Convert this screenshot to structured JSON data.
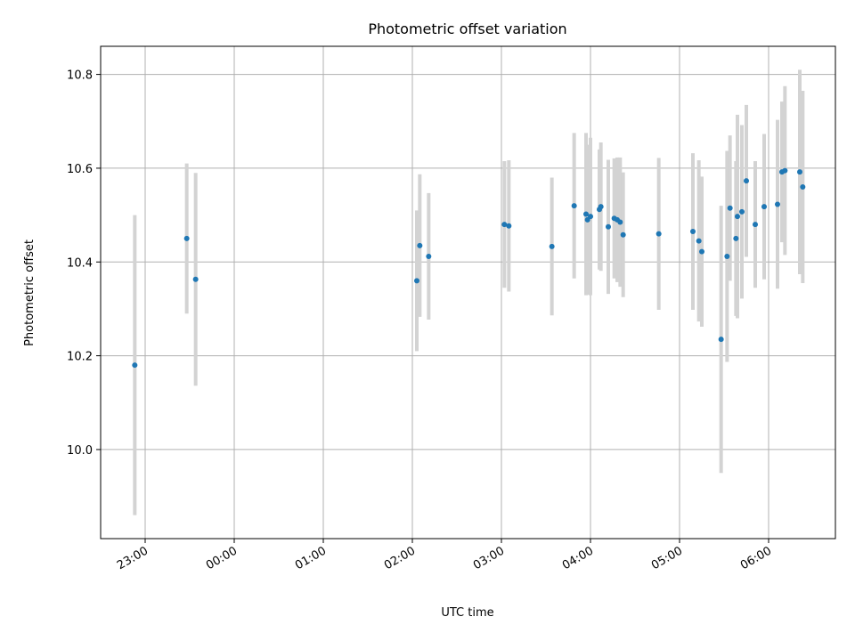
{
  "chart_data": {
    "type": "scatter",
    "title": "Photometric offset variation",
    "xlabel": "UTC time",
    "ylabel": "Photometric offset",
    "x_axis": {
      "unit": "time",
      "range": [
        "22:30",
        "06:45"
      ],
      "ticks": [
        "23:00",
        "00:00",
        "01:00",
        "02:00",
        "03:00",
        "04:00",
        "05:00",
        "06:00"
      ]
    },
    "y_axis": {
      "range": [
        9.81,
        10.86
      ],
      "ticks": [
        "10.0",
        "10.2",
        "10.4",
        "10.6",
        "10.8"
      ]
    },
    "grid": true,
    "colors": {
      "point": "#1f77b4",
      "errorbar": "#d3d3d3",
      "grid": "#b0b0b0"
    },
    "points": [
      {
        "x": "22:53",
        "y": 10.18,
        "err": 0.32
      },
      {
        "x": "23:28",
        "y": 10.45,
        "err": 0.16
      },
      {
        "x": "23:34",
        "y": 10.363,
        "err": 0.227
      },
      {
        "x": "02:03",
        "y": 10.36,
        "err": 0.15
      },
      {
        "x": "02:05",
        "y": 10.435,
        "err": 0.152
      },
      {
        "x": "02:11",
        "y": 10.412,
        "err": 0.135
      },
      {
        "x": "03:02",
        "y": 10.48,
        "err": 0.135
      },
      {
        "x": "03:05",
        "y": 10.477,
        "err": 0.14
      },
      {
        "x": "03:34",
        "y": 10.433,
        "err": 0.147
      },
      {
        "x": "03:49",
        "y": 10.52,
        "err": 0.155
      },
      {
        "x": "03:57",
        "y": 10.502,
        "err": 0.173
      },
      {
        "x": "03:58",
        "y": 10.49,
        "err": 0.16
      },
      {
        "x": "04:00",
        "y": 10.497,
        "err": 0.168
      },
      {
        "x": "04:06",
        "y": 10.512,
        "err": 0.128
      },
      {
        "x": "04:07",
        "y": 10.518,
        "err": 0.137
      },
      {
        "x": "04:12",
        "y": 10.475,
        "err": 0.143
      },
      {
        "x": "04:16",
        "y": 10.493,
        "err": 0.128
      },
      {
        "x": "04:18",
        "y": 10.49,
        "err": 0.133
      },
      {
        "x": "04:20",
        "y": 10.485,
        "err": 0.138
      },
      {
        "x": "04:22",
        "y": 10.458,
        "err": 0.133
      },
      {
        "x": "04:46",
        "y": 10.46,
        "err": 0.162
      },
      {
        "x": "05:09",
        "y": 10.465,
        "err": 0.167
      },
      {
        "x": "05:13",
        "y": 10.445,
        "err": 0.172
      },
      {
        "x": "05:15",
        "y": 10.422,
        "err": 0.16
      },
      {
        "x": "05:28",
        "y": 10.235,
        "err": 0.285
      },
      {
        "x": "05:32",
        "y": 10.412,
        "err": 0.225
      },
      {
        "x": "05:34",
        "y": 10.515,
        "err": 0.155
      },
      {
        "x": "05:38",
        "y": 10.45,
        "err": 0.165
      },
      {
        "x": "05:39",
        "y": 10.497,
        "err": 0.217
      },
      {
        "x": "05:42",
        "y": 10.507,
        "err": 0.185
      },
      {
        "x": "05:45",
        "y": 10.573,
        "err": 0.162
      },
      {
        "x": "05:51",
        "y": 10.48,
        "err": 0.135
      },
      {
        "x": "05:57",
        "y": 10.518,
        "err": 0.155
      },
      {
        "x": "06:06",
        "y": 10.523,
        "err": 0.18
      },
      {
        "x": "06:09",
        "y": 10.592,
        "err": 0.15
      },
      {
        "x": "06:11",
        "y": 10.595,
        "err": 0.18
      },
      {
        "x": "06:21",
        "y": 10.592,
        "err": 0.218
      },
      {
        "x": "06:23",
        "y": 10.56,
        "err": 0.205
      }
    ]
  }
}
